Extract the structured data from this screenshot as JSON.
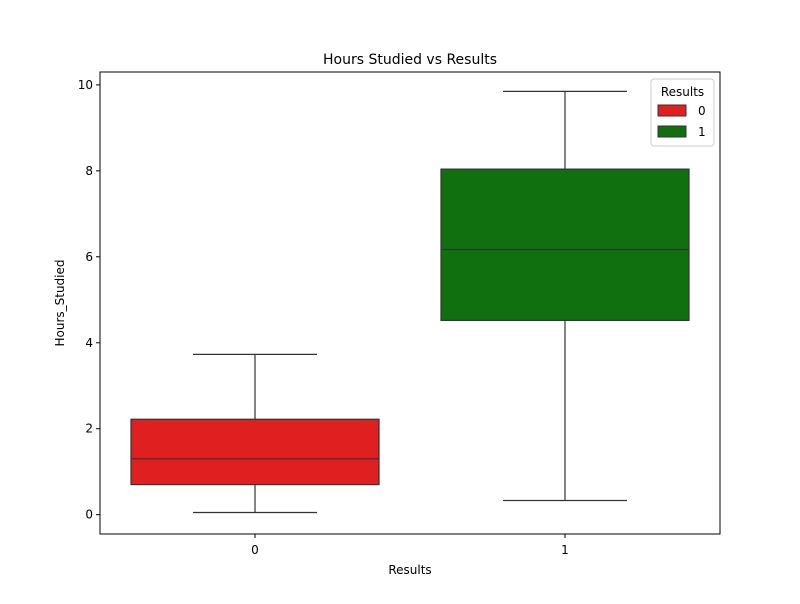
{
  "chart_data": {
    "type": "box",
    "title": "Hours Studied vs Results",
    "xlabel": "Results",
    "ylabel": "Hours_Studied",
    "categories": [
      "0",
      "1"
    ],
    "ylim": [
      -0.45,
      10.3
    ],
    "yticks": [
      0,
      2,
      4,
      6,
      8,
      10
    ],
    "grid": false,
    "boxes": [
      {
        "category": "0",
        "min": 0.05,
        "q1": 0.7,
        "median": 1.3,
        "q3": 2.22,
        "max": 3.73,
        "color": "#e02020"
      },
      {
        "category": "1",
        "min": 0.33,
        "q1": 4.52,
        "median": 6.17,
        "q3": 8.04,
        "max": 9.85,
        "color": "#107010"
      }
    ],
    "legend": {
      "title": "Results",
      "placement": "top-right",
      "entries": [
        {
          "label": "0",
          "color": "#e02020"
        },
        {
          "label": "1",
          "color": "#107010"
        }
      ]
    },
    "colors": {
      "line": "#333333",
      "axis": "#000000",
      "legend_border": "#cccccc"
    }
  }
}
